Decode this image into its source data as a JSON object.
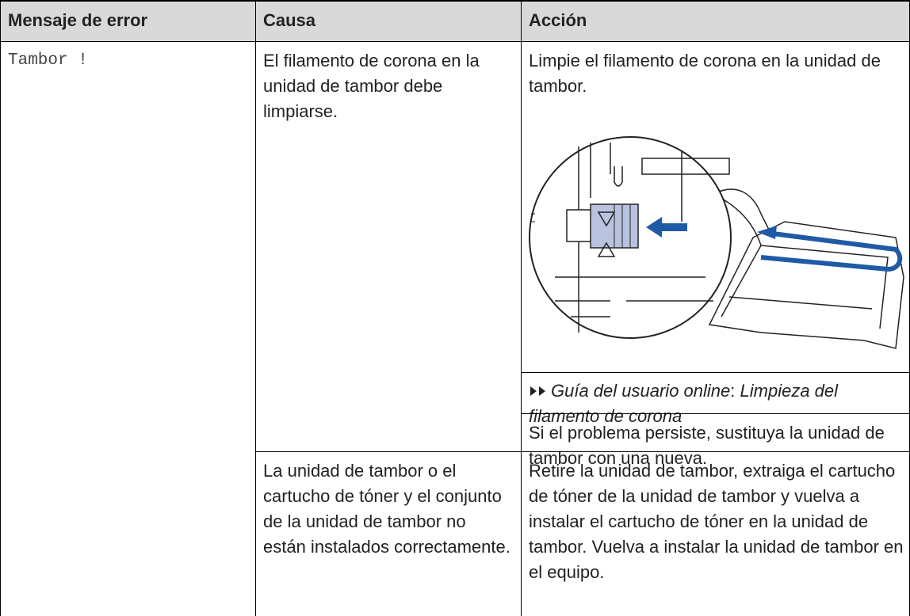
{
  "table": {
    "headers": [
      "Mensaje de error",
      "Causa",
      "Acción"
    ],
    "error_message": "Tambor !",
    "rows": [
      {
        "cause": "El filamento de corona en la unidad de tambor debe limpiarse.",
        "action": "Limpie el filamento de corona en la unidad de tambor.",
        "reference": {
          "guide": "Guía del usuario online",
          "separator": ":",
          "topic": "Limpieza del filamento de corona"
        },
        "note": "Si el problema persiste, sustituya la unidad de tambor con una nueva."
      },
      {
        "cause": "La unidad de tambor o el cartucho de tóner y el conjunto de la unidad de tambor no están instalados correctamente.",
        "action": "Retire la unidad de tambor, extraiga el cartucho de tóner de la unidad de tambor y vuelva a instalar el cartucho de tóner en la unidad de tambor. Vuelva a instalar la unidad de tambor en el equipo."
      }
    ]
  }
}
